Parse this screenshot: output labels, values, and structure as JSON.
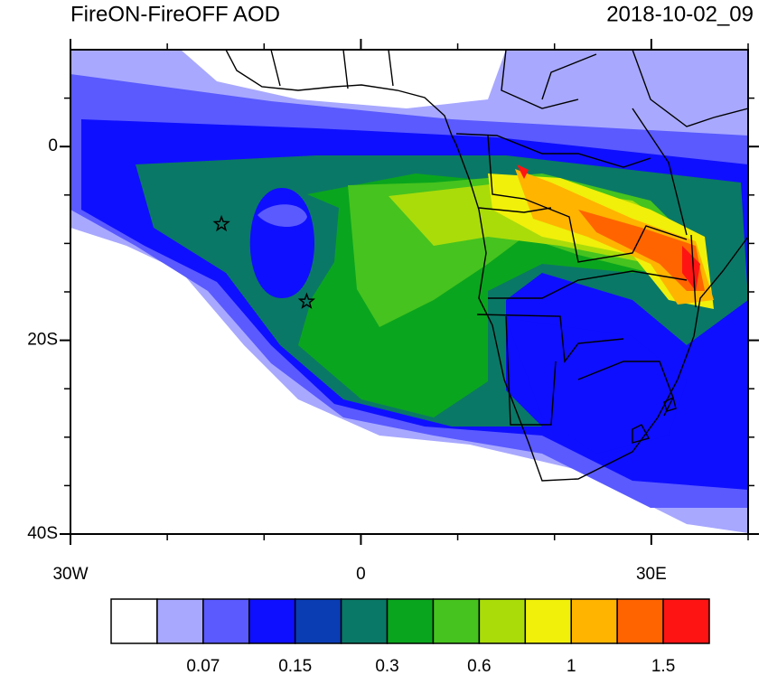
{
  "chart_data": {
    "type": "contour-map",
    "title": "FireON-FireOFF AOD",
    "subtitle": "2018-10-02_09",
    "xlim": [
      -30,
      40
    ],
    "ylim": [
      -40,
      10
    ],
    "xticks": [
      {
        "value": -30,
        "label": "30W"
      },
      0,
      {
        "value": 30,
        "label": "30E"
      }
    ],
    "yticks": [
      0,
      {
        "value": -20,
        "label": "20S"
      },
      {
        "value": -40,
        "label": "40S"
      }
    ],
    "xminor": [
      -20,
      -10,
      10,
      20,
      40
    ],
    "yminor": [
      5,
      -5,
      -10,
      -15,
      -25,
      -30,
      -35
    ],
    "markers": [
      {
        "lon": -14.4,
        "lat": -8
      },
      {
        "lon": -5.6,
        "lat": -16
      }
    ],
    "colorbar": {
      "colors": [
        "#ffffff",
        "#a8a8ff",
        "#5a5aff",
        "#0f0fff",
        "#0a3cb4",
        "#0a7866",
        "#0aa51e",
        "#46c31e",
        "#aadc0a",
        "#f0f00a",
        "#ffb400",
        "#ff6400",
        "#ff1414"
      ],
      "labels": [
        0.07,
        0.15,
        0.3,
        0.6,
        1,
        1.5
      ]
    }
  }
}
